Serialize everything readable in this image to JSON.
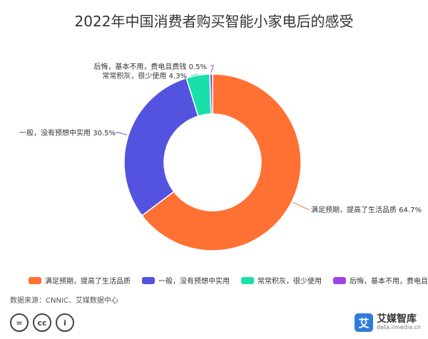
{
  "title": "2022年中国消费者购买智能小家电后的感受",
  "source": "数据来源：CNNIC、艾媒数据中心",
  "brand": {
    "name": "艾媒智库",
    "url": "data.iimedia.cn",
    "logo_char": "艾"
  },
  "license": {
    "equal": "=",
    "cc": "cc",
    "person": "i"
  },
  "colors": {
    "orange": "#FF7033",
    "blue": "#5353E0",
    "teal": "#19E0A8",
    "purple": "#9B45E8"
  },
  "chart_data": {
    "type": "pie",
    "style": "donut",
    "slices": [
      {
        "label": "满足预期，提高了生活品质",
        "value": 64.7,
        "data_label": "满足预期，提高了生活品质 64.7%",
        "color": "#FF7033"
      },
      {
        "label": "一般，没有预想中实用",
        "value": 30.5,
        "data_label": "一般，没有预想中实用 30.5%",
        "color": "#5353E0"
      },
      {
        "label": "常常积灰，很少使用",
        "value": 4.3,
        "data_label": "常常积灰，很少使用 4.3%",
        "color": "#19E0A8"
      },
      {
        "label": "后悔，基本不用，费电且费钱",
        "value": 0.5,
        "data_label": "后悔，基本不用，费电且费钱 0.5%",
        "color": "#9B45E8"
      }
    ],
    "legend_position": "bottom"
  }
}
